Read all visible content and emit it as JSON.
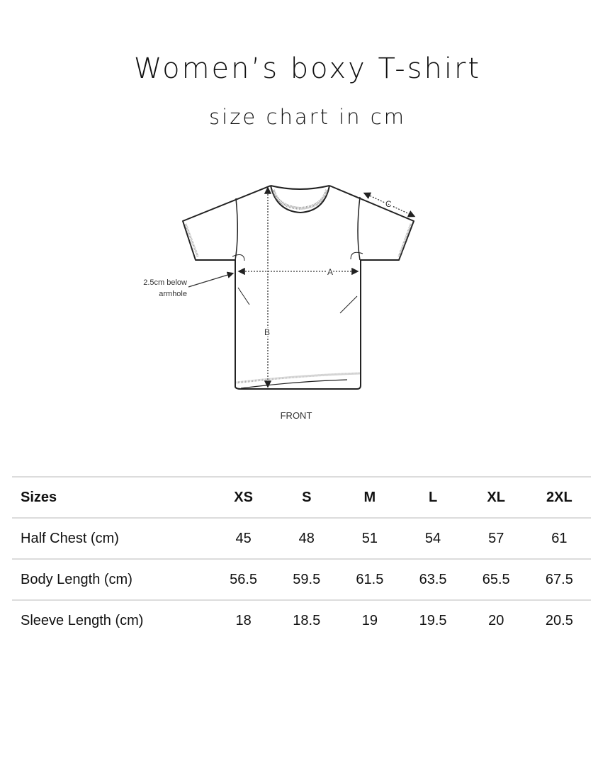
{
  "title": "Women’s boxy T-shirt",
  "subtitle": "size chart in cm",
  "diagram": {
    "labels": {
      "a": "A",
      "b": "B",
      "c": "C",
      "note_line1": "2.5cm below",
      "note_line2": "armhole",
      "view": "FRONT"
    }
  },
  "table": {
    "headers": [
      "Sizes",
      "XS",
      "S",
      "M",
      "L",
      "XL",
      "2XL"
    ],
    "rows": [
      [
        "Half Chest (cm)",
        "45",
        "48",
        "51",
        "54",
        "57",
        "61"
      ],
      [
        "Body Length (cm)",
        "56.5",
        "59.5",
        "61.5",
        "63.5",
        "65.5",
        "67.5"
      ],
      [
        "Sleeve Length (cm)",
        "18",
        "18.5",
        "19",
        "19.5",
        "20",
        "20.5"
      ]
    ]
  }
}
